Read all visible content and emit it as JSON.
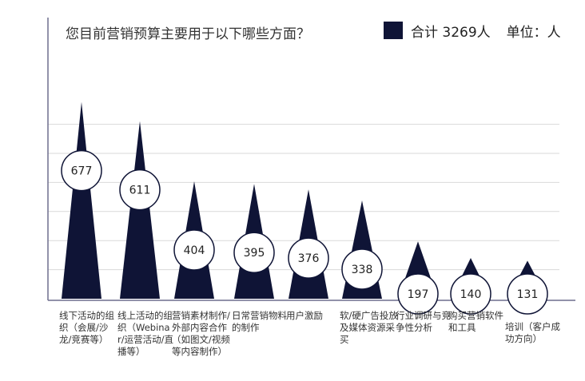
{
  "title": "您目前营销预算主要用于以下哪些方面？",
  "legend": {
    "label": "合计 3269人",
    "unit": "单位：人",
    "color": "#0f1436"
  },
  "chart_data": {
    "type": "bar",
    "title": "您目前营销预算主要用于以下哪些方面？",
    "xlabel": "",
    "ylabel": "",
    "ylim": [
      0,
      1000
    ],
    "grid": true,
    "legend_position": "top-right",
    "categories": [
      "线下活动的组织（会展/沙龙/竞赛等）",
      "线上活动的组织（Webinar/运营活动/直播等）",
      "营销素材制作/外部内容合作（如图文/视频等内容制作）",
      "日常营销物料的制作",
      "用户激励",
      "软/硬广告投放及媒体资源采买",
      "行业调研与竞争性分析",
      "购买营销软件和工具",
      "培训（客户成功方向）"
    ],
    "values": [
      677,
      611,
      404,
      395,
      376,
      338,
      197,
      140,
      131
    ],
    "bar_color": "#0f1436"
  }
}
